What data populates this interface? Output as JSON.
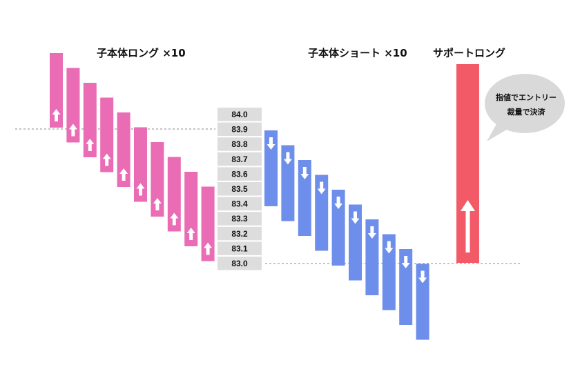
{
  "titles": {
    "long_child": "子本体ロング ×10",
    "short_child": "子本体ショート ×10",
    "support_long": "サポートロング"
  },
  "price_ladder": [
    "84.0",
    "83.9",
    "83.8",
    "83.7",
    "83.6",
    "83.5",
    "83.4",
    "83.3",
    "83.2",
    "83.1",
    "83.0"
  ],
  "bubble": {
    "line1": "指値でエントリー",
    "line2": "裁量で決済"
  },
  "colors": {
    "long_bar": "#e96cb5",
    "short_bar": "#6d8eeb",
    "support_bar": "#f25a67",
    "price_cell": "#dddddd",
    "dashed_line": "#888888",
    "bubble": "#d9d9d9",
    "arrow": "#ffffff"
  },
  "icons": {
    "up": "up-arrow-icon",
    "down": "down-arrow-icon"
  }
}
